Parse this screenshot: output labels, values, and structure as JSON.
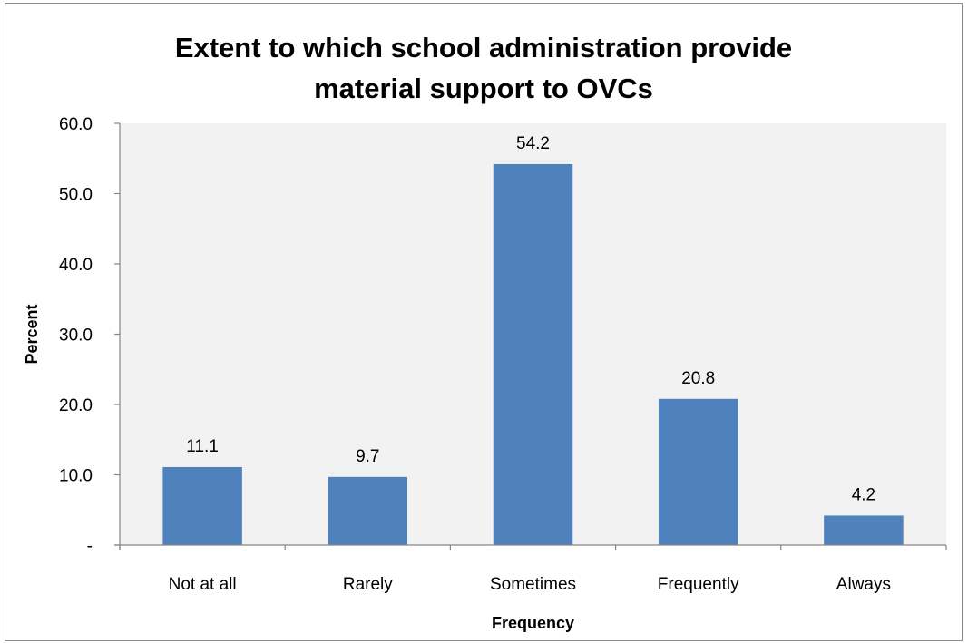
{
  "chart_data": {
    "type": "bar",
    "title_lines": [
      "Extent to which school administration provide",
      "material support to OVCs"
    ],
    "xlabel": "Frequency",
    "ylabel": "Percent",
    "categories": [
      "Not at all",
      "Rarely",
      "Sometimes",
      "Frequently",
      "Always"
    ],
    "values": [
      11.1,
      9.7,
      54.2,
      20.8,
      4.2
    ],
    "data_labels": [
      "11.1",
      "9.7",
      "54.2",
      "20.8",
      "4.2"
    ],
    "ylim": [
      0,
      60
    ],
    "yticks": [
      0,
      10,
      20,
      30,
      40,
      50,
      60
    ],
    "ytick_labels": [
      "-",
      "10.0",
      "20.0",
      "30.0",
      "40.0",
      "50.0",
      "60.0"
    ],
    "grid": false,
    "legend": "none",
    "colors": {
      "bar": "#4f81bd",
      "plot_bg": "#f2f2f2",
      "axis": "#868686"
    }
  }
}
